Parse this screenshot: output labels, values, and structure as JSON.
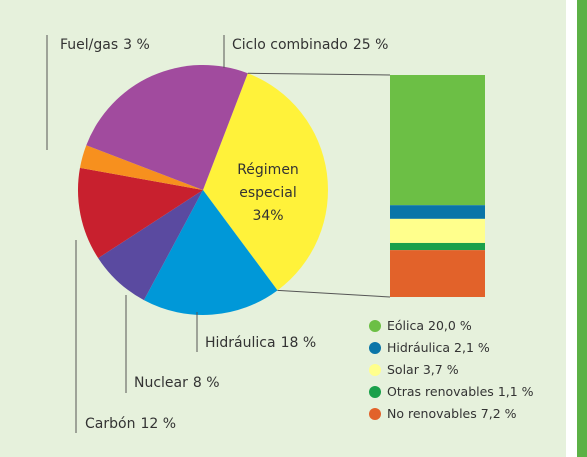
{
  "chart_data": [
    {
      "type": "pie",
      "categories": [
        "Régimen especial",
        "Hidráulica",
        "Nuclear",
        "Carbón",
        "Fuel/gas",
        "Ciclo combinado"
      ],
      "values": [
        34,
        18,
        8,
        12,
        3,
        25
      ],
      "value_labels": [
        "34%",
        "18 %",
        "8 %",
        "12 %",
        "3 %",
        "25 %"
      ],
      "colors": [
        "#fff23a",
        "#0098d8",
        "#5a4aa0",
        "#c8202e",
        "#f7901e",
        "#a14b9e"
      ]
    },
    {
      "type": "bar",
      "categories": [
        "Eólica",
        "Hidráulica",
        "Solar",
        "Otras renovables",
        "No renovables"
      ],
      "values": [
        20.0,
        2.1,
        3.7,
        1.1,
        7.2
      ],
      "value_labels": [
        "20,0 %",
        "2,1 %",
        "3,7 %",
        "1,1 %",
        "7,2 %"
      ],
      "colors": [
        "#6cbf45",
        "#0a75a8",
        "#ffff8c",
        "#1aa04a",
        "#e2622a"
      ]
    }
  ]
}
